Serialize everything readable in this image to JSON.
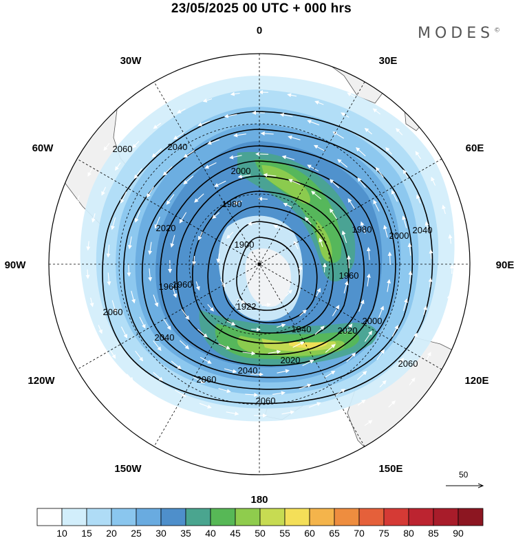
{
  "title": "23/05/2025  00 UTC  + 000 hrs",
  "brand": "MODES",
  "brand_mark": "©",
  "longitude_labels": {
    "lon_0": "0",
    "lon_30e": "30E",
    "lon_60e": "60E",
    "lon_90e": "90E",
    "lon_120e": "120E",
    "lon_150e": "150E",
    "lon_180": "180",
    "lon_150w": "150W",
    "lon_120w": "120W",
    "lon_90w": "90W",
    "lon_60w": "60W",
    "lon_30w": "30W"
  },
  "contour_labels": [
    "2060",
    "2040",
    "2000",
    "1980",
    "2020",
    "1960",
    "1900",
    "1922",
    "1960",
    "1980",
    "2000",
    "1940",
    "2020",
    "2020",
    "2040",
    "2060",
    "2040",
    "2060",
    "2060",
    "2040",
    "2060",
    "1960",
    "2000"
  ],
  "reference_vector": {
    "value": "50"
  },
  "colorbar": {
    "ticks": [
      "10",
      "15",
      "20",
      "25",
      "30",
      "35",
      "40",
      "45",
      "50",
      "55",
      "60",
      "65",
      "70",
      "75",
      "80",
      "85",
      "90"
    ],
    "colors": [
      "#ffffff",
      "#d2eefb",
      "#afdcf6",
      "#8ac6ee",
      "#69abe0",
      "#4e8fcb",
      "#4aa58f",
      "#57b856",
      "#8fcc4d",
      "#c7db52",
      "#f4df58",
      "#f4b44b",
      "#ee8d3f",
      "#e5603a",
      "#d53a35",
      "#bc2430",
      "#a81c2a",
      "#8c1621"
    ]
  },
  "map": {
    "land_color": "#f0f0f0",
    "shading_colors": {
      "s15": "#d2eefb",
      "s20": "#afdcf6",
      "s25": "#8ac6ee",
      "s30": "#69abe0",
      "s35": "#4e8fcb",
      "s40": "#4aa58f",
      "s45": "#57b856",
      "s50": "#8fcc4d",
      "s55": "#c7db52",
      "s60": "#f4df58"
    }
  }
}
